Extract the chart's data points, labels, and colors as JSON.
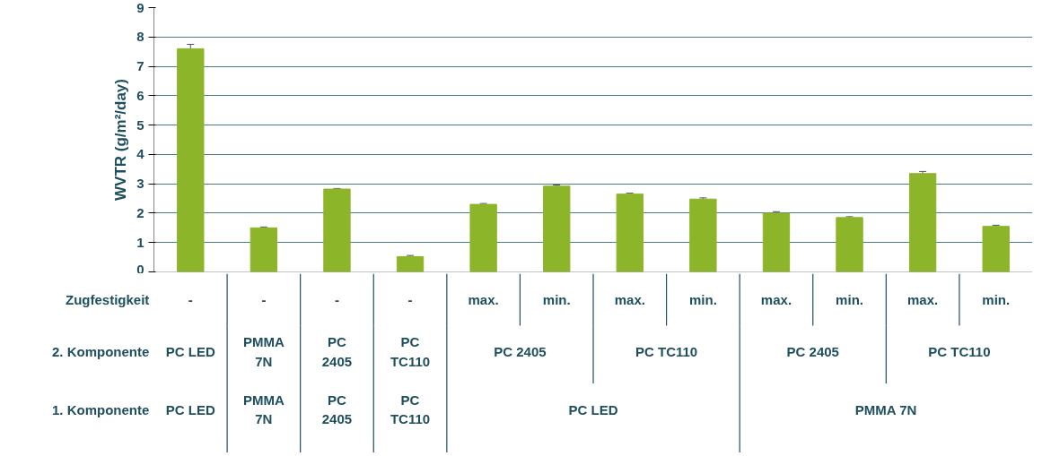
{
  "chart_data": {
    "type": "bar",
    "ylabel": "WVTR (g/m²/day)",
    "categories": [
      "-",
      "-",
      "-",
      "-",
      "max.",
      "min.",
      "max.",
      "min.",
      "max.",
      "min.",
      "max.",
      "min."
    ],
    "values": [
      7.6,
      1.5,
      2.82,
      0.52,
      2.3,
      2.92,
      2.65,
      2.48,
      2.0,
      1.85,
      3.35,
      1.55
    ],
    "errors": [
      0.15,
      0.03,
      0.02,
      0.04,
      0.03,
      0.04,
      0.03,
      0.04,
      0.05,
      0.03,
      0.07,
      0.04
    ],
    "color": "#8db52a",
    "ylim": [
      0,
      9
    ],
    "yticks": [
      0,
      1,
      2,
      3,
      4,
      5,
      6,
      7,
      8,
      9
    ],
    "grid": "y",
    "annotations": [
      "Zugfestigkeit",
      "2. Komponente",
      "1. Komponente",
      "PC LED",
      "PMMA 7N",
      "PC 2405",
      "PC TC110",
      "PC 2405",
      "PC TC110",
      "PC 2405",
      "PC TC110",
      "PC LED",
      "PMMA 7N",
      "PC 2405",
      "PC TC110",
      "PC LED",
      "PMMA 7N"
    ]
  }
}
